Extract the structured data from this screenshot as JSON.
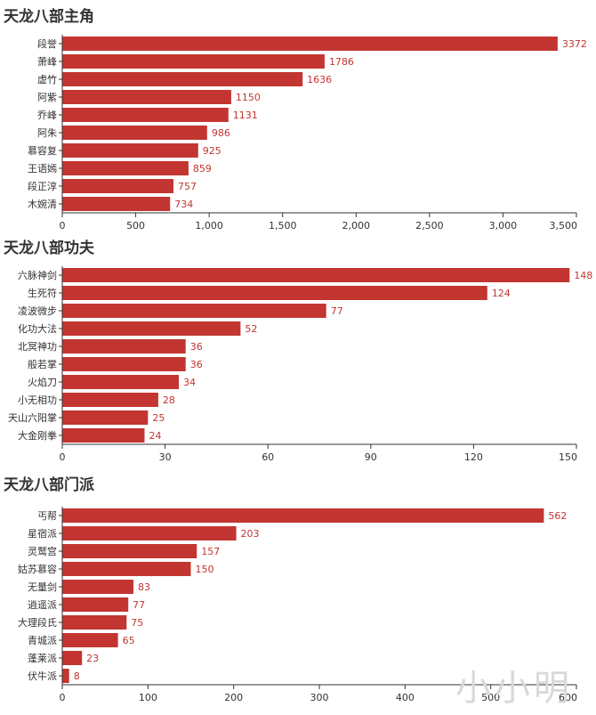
{
  "colors": {
    "bar": "#c23531",
    "axis": "#333333",
    "text": "#333333",
    "watermark": "#d9d9d9"
  },
  "watermark": "小小明",
  "chart_data": [
    {
      "type": "bar",
      "orientation": "horizontal",
      "title": "天龙八部主角",
      "categories": [
        "段誉",
        "萧峰",
        "虚竹",
        "阿紫",
        "乔峰",
        "阿朱",
        "慕容复",
        "王语嫣",
        "段正淳",
        "木婉清"
      ],
      "values": [
        3372,
        1786,
        1636,
        1150,
        1131,
        986,
        925,
        859,
        757,
        734
      ],
      "xlim": [
        0,
        3500
      ],
      "xticks": [
        "0",
        "500",
        "1,000",
        "1,500",
        "2,000",
        "2,500",
        "3,000",
        "3,500"
      ],
      "xlabel": "",
      "ylabel": "",
      "grid": false,
      "data_labels": true
    },
    {
      "type": "bar",
      "orientation": "horizontal",
      "title": "天龙八部功夫",
      "categories": [
        "六脉神剑",
        "生死符",
        "凌波微步",
        "化功大法",
        "北冥神功",
        "般若掌",
        "火焰刀",
        "小无相功",
        "天山六阳掌",
        "大金刚拳"
      ],
      "values": [
        148,
        124,
        77,
        52,
        36,
        36,
        34,
        28,
        25,
        24
      ],
      "xlim": [
        0,
        150
      ],
      "xticks": [
        "0",
        "30",
        "60",
        "90",
        "120",
        "150"
      ],
      "xlabel": "",
      "ylabel": "",
      "grid": false,
      "data_labels": true
    },
    {
      "type": "bar",
      "orientation": "horizontal",
      "title": "天龙八部门派",
      "categories": [
        "丐帮",
        "星宿派",
        "灵鹫宫",
        "姑苏慕容",
        "无量剑",
        "逍遥派",
        "大理段氏",
        "青城派",
        "蓬莱派",
        "伏牛派"
      ],
      "values": [
        562,
        203,
        157,
        150,
        83,
        77,
        75,
        65,
        23,
        8
      ],
      "xlim": [
        0,
        600
      ],
      "xticks": [
        "0",
        "100",
        "200",
        "300",
        "400",
        "500",
        "600"
      ],
      "xlabel": "",
      "ylabel": "",
      "grid": false,
      "data_labels": true
    }
  ]
}
